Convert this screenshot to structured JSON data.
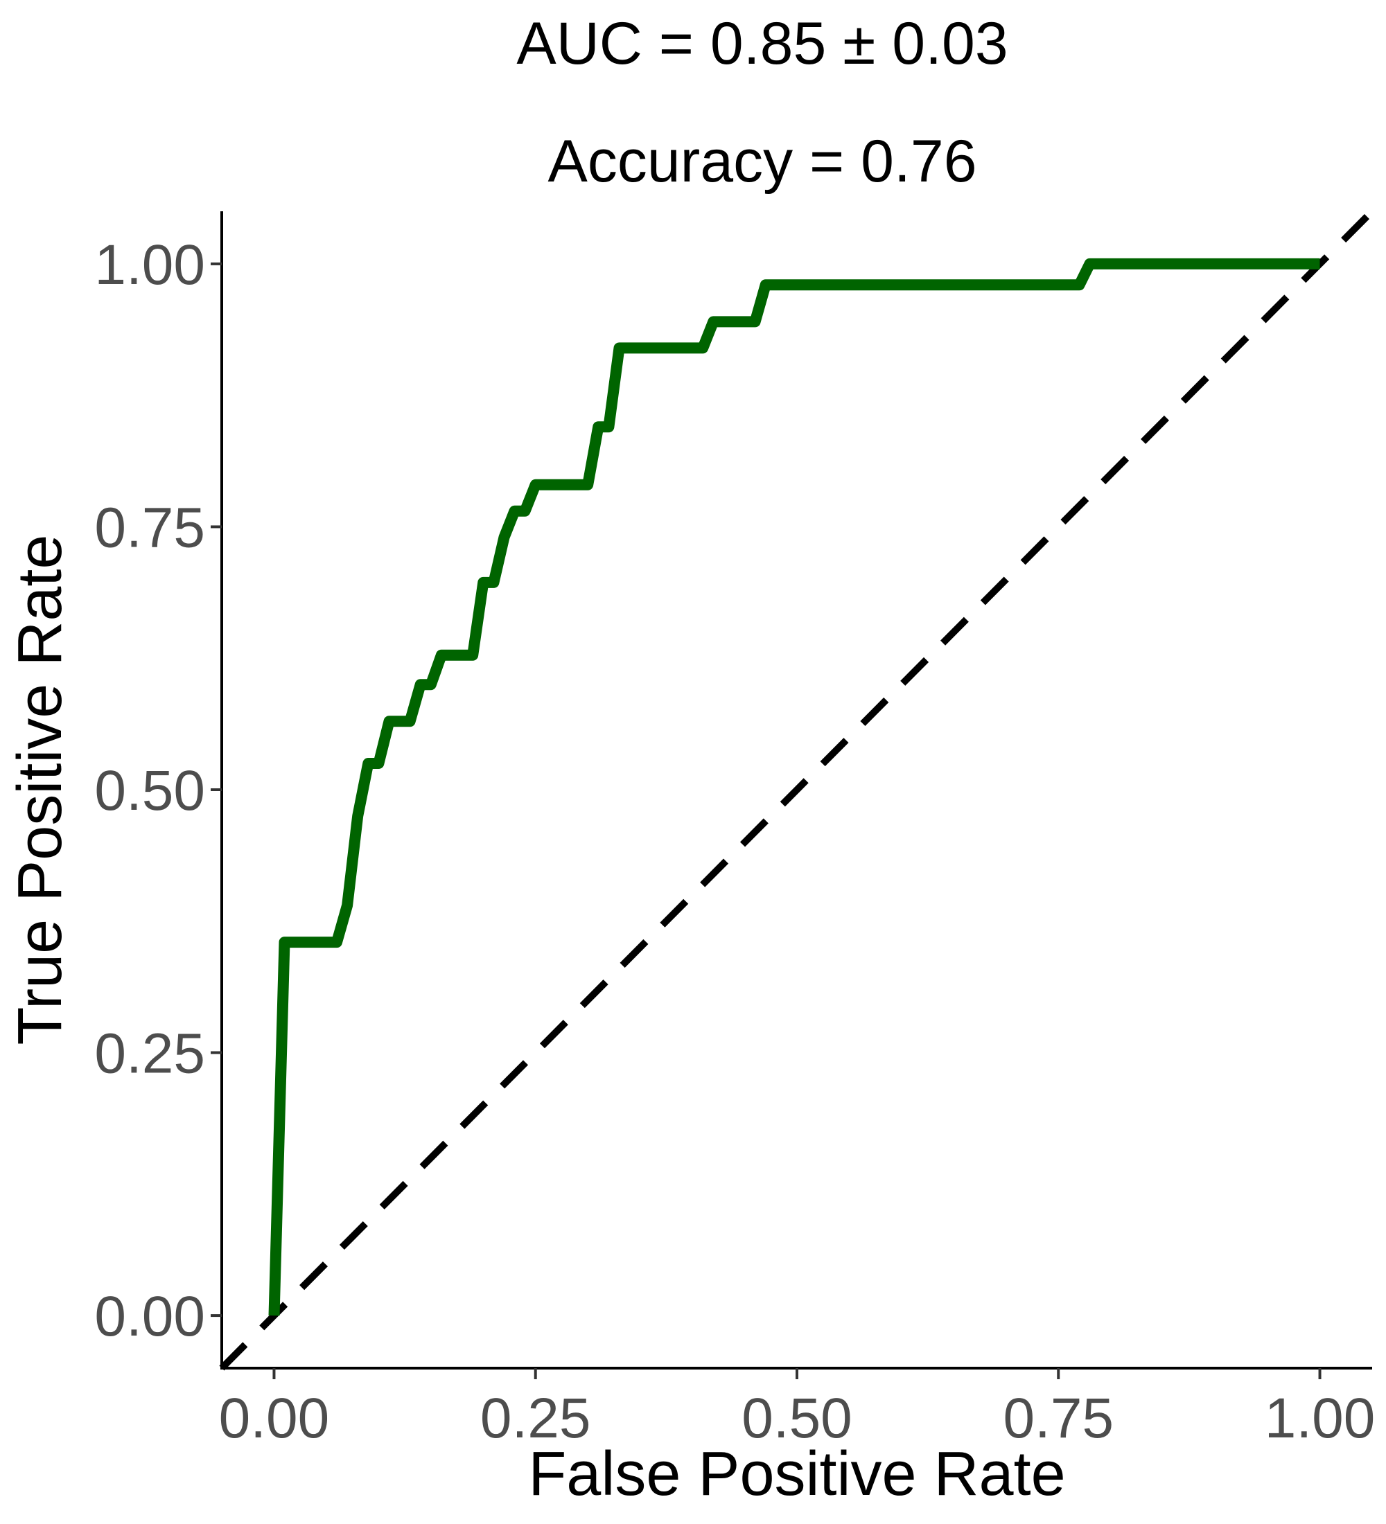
{
  "chart_data": {
    "type": "line",
    "title_lines": [
      "AUC = 0.85 ± 0.03",
      "Accuracy = 0.76"
    ],
    "xlabel": "False Positive Rate",
    "ylabel": "True Positive Rate",
    "xlim": [
      -0.05,
      1.05
    ],
    "ylim": [
      -0.05,
      1.05
    ],
    "x_ticks": [
      0,
      0.25,
      0.5,
      0.75,
      1.0
    ],
    "x_tick_labels": [
      "0.00",
      "0.25",
      "0.50",
      "0.75",
      "1.00"
    ],
    "y_ticks": [
      0,
      0.25,
      0.5,
      0.75,
      1.0
    ],
    "y_tick_labels": [
      "0.00",
      "0.25",
      "0.50",
      "0.75",
      "1.00"
    ],
    "grid": false,
    "legend": "none",
    "series": [
      {
        "color": "#006400",
        "style": "solid",
        "x": [
          0.0,
          0.01,
          0.06,
          0.07,
          0.08,
          0.09,
          0.1,
          0.11,
          0.13,
          0.14,
          0.15,
          0.16,
          0.19,
          0.2,
          0.21,
          0.22,
          0.23,
          0.24,
          0.25,
          0.3,
          0.31,
          0.32,
          0.33,
          0.41,
          0.42,
          0.46,
          0.47,
          0.77,
          0.78,
          1.0
        ],
        "y": [
          0.0,
          0.355,
          0.355,
          0.39,
          0.475,
          0.525,
          0.525,
          0.565,
          0.565,
          0.6,
          0.6,
          0.628,
          0.628,
          0.697,
          0.697,
          0.74,
          0.765,
          0.765,
          0.79,
          0.79,
          0.845,
          0.845,
          0.92,
          0.92,
          0.945,
          0.945,
          0.98,
          0.98,
          1.0,
          1.0
        ]
      },
      {
        "color": "#000000",
        "style": "dashed",
        "x": [
          -0.05,
          1.05
        ],
        "y": [
          -0.05,
          1.05
        ]
      }
    ]
  }
}
